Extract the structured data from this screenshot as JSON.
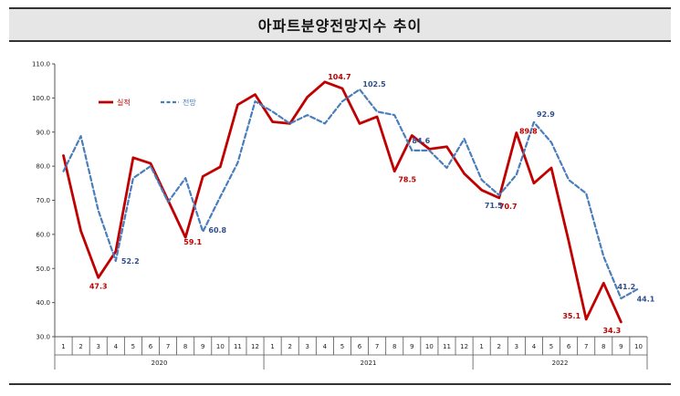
{
  "chart_data": {
    "type": "line",
    "title": "아파트분양전망지수 추이",
    "xlabel": "",
    "ylabel": "",
    "ylim": [
      30,
      110
    ],
    "yticks": [
      "30.0",
      "40.0",
      "50.0",
      "60.0",
      "70.0",
      "80.0",
      "90.0",
      "100.0",
      "110.0"
    ],
    "months": [
      "1",
      "2",
      "3",
      "4",
      "5",
      "6",
      "7",
      "8",
      "9",
      "10",
      "11",
      "12",
      "1",
      "2",
      "3",
      "4",
      "5",
      "6",
      "7",
      "8",
      "9",
      "10",
      "11",
      "12",
      "1",
      "2",
      "3",
      "4",
      "5",
      "6",
      "7",
      "8",
      "9",
      "10"
    ],
    "years": [
      "2020",
      "2021",
      "2022"
    ],
    "legend": {
      "placement": "top-left"
    },
    "grid": false,
    "series": [
      {
        "name": "실적",
        "color": "#c00000",
        "style": "solid",
        "values": [
          83.1,
          61.0,
          47.3,
          55.0,
          82.5,
          80.8,
          70.0,
          59.1,
          77.0,
          79.8,
          98.0,
          101.0,
          93.0,
          92.5,
          100.3,
          104.7,
          102.8,
          92.5,
          94.5,
          78.5,
          89.0,
          85.0,
          85.7,
          77.8,
          73.0,
          70.7,
          89.8,
          75.0,
          79.5,
          58.0,
          35.1,
          45.7,
          34.3
        ],
        "labels": [
          {
            "index": 2,
            "text": "47.3"
          },
          {
            "index": 7,
            "text": "59.1"
          },
          {
            "index": 15,
            "text": "104.7"
          },
          {
            "index": 19,
            "text": "78.5"
          },
          {
            "index": 25,
            "text": "70.7"
          },
          {
            "index": 26,
            "text": "89.8"
          },
          {
            "index": 30,
            "text": "35.1"
          },
          {
            "index": 32,
            "text": "34.3"
          }
        ]
      },
      {
        "name": "전망",
        "color": "#4a7ebb",
        "style": "dashed",
        "values": [
          78.5,
          88.8,
          67.0,
          52.2,
          76.5,
          80.0,
          69.5,
          76.5,
          60.8,
          71.0,
          81.0,
          99.0,
          96.0,
          92.5,
          95.0,
          92.5,
          99.0,
          102.5,
          96.0,
          95.0,
          84.6,
          84.6,
          79.5,
          88.0,
          76.0,
          71.5,
          77.5,
          92.9,
          87.0,
          76.0,
          72.0,
          53.5,
          41.2,
          44.1
        ],
        "labels": [
          {
            "index": 3,
            "text": "52.2"
          },
          {
            "index": 8,
            "text": "60.8"
          },
          {
            "index": 17,
            "text": "102.5"
          },
          {
            "index": 20,
            "text": "84.6"
          },
          {
            "index": 25,
            "text": "71.5"
          },
          {
            "index": 27,
            "text": "92.9"
          },
          {
            "index": 32,
            "text": "41.2"
          },
          {
            "index": 33,
            "text": "44.1"
          }
        ]
      }
    ]
  }
}
